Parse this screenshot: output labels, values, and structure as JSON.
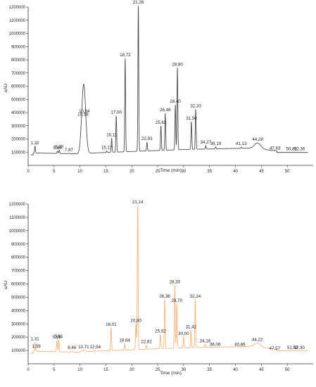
{
  "chart_data": [
    {
      "type": "line",
      "xlabel": "Time (min)",
      "ylabel": "uAU",
      "xlim": [
        0,
        55
      ],
      "ylim": [
        0,
        1200000
      ],
      "xticks": [
        0,
        5,
        10,
        15,
        20,
        25,
        30,
        35,
        40,
        45,
        50
      ],
      "yticks": [
        100000,
        200000,
        300000,
        400000,
        500000,
        600000,
        700000,
        800000,
        900000,
        1000000,
        1100000,
        1200000
      ],
      "color": "#4d4d4d",
      "peaks": [
        {
          "label": "1,32",
          "x": 1.32,
          "y": 145000
        },
        {
          "label": "5,66",
          "x": 5.66,
          "y": 108000
        },
        {
          "label": "6,00",
          "x": 6.0,
          "y": 115000
        },
        {
          "label": "7,87",
          "x": 7.87,
          "y": 92000
        },
        {
          "label": "10,58",
          "x": 10.58,
          "y": 360000
        },
        {
          "label": "10,84",
          "x": 10.84,
          "y": 385000
        },
        {
          "label": "15,17",
          "x": 15.17,
          "y": 110000
        },
        {
          "label": "16,11",
          "x": 16.11,
          "y": 205000
        },
        {
          "label": "17,00",
          "x": 17.0,
          "y": 375000
        },
        {
          "label": "18,72",
          "x": 18.72,
          "y": 810000
        },
        {
          "label": "21,26",
          "x": 21.26,
          "y": 1210000
        },
        {
          "label": "22,93",
          "x": 22.93,
          "y": 175000
        },
        {
          "label": "25,62",
          "x": 25.62,
          "y": 300000
        },
        {
          "label": "26,46",
          "x": 26.46,
          "y": 395000
        },
        {
          "label": "28,40",
          "x": 28.4,
          "y": 460000
        },
        {
          "label": "28,80",
          "x": 28.8,
          "y": 740000
        },
        {
          "label": "31,50",
          "x": 31.5,
          "y": 330000
        },
        {
          "label": "32,33",
          "x": 32.33,
          "y": 425000
        },
        {
          "label": "34,27",
          "x": 34.27,
          "y": 150000
        },
        {
          "label": "36,19",
          "x": 36.19,
          "y": 140000
        },
        {
          "label": "41,13",
          "x": 41.13,
          "y": 138000
        },
        {
          "label": "44,28",
          "x": 44.28,
          "y": 170000
        },
        {
          "label": "47,63",
          "x": 47.63,
          "y": 103000
        },
        {
          "label": "50,82",
          "x": 50.82,
          "y": 98000
        },
        {
          "label": "52,36",
          "x": 52.36,
          "y": 98000
        }
      ]
    },
    {
      "type": "line",
      "xlabel": "Time (min)",
      "ylabel": "uAU",
      "xlim": [
        0,
        55
      ],
      "ylim": [
        0,
        1200000
      ],
      "xticks": [
        0,
        5,
        10,
        15,
        20,
        25,
        30,
        35,
        40,
        45,
        50
      ],
      "yticks": [
        100000,
        200000,
        300000,
        400000,
        500000,
        600000,
        700000,
        800000,
        900000,
        1000000,
        1100000,
        1200000
      ],
      "color": "#f5b27a",
      "peaks": [
        {
          "label": "1,31",
          "x": 1.31,
          "y": 160000
        },
        {
          "label": "1,59",
          "x": 1.59,
          "y": 105000
        },
        {
          "label": "5,56",
          "x": 5.56,
          "y": 175000
        },
        {
          "label": "5,91",
          "x": 5.91,
          "y": 180000
        },
        {
          "label": "8,46",
          "x": 8.46,
          "y": 96000
        },
        {
          "label": "10,71",
          "x": 10.71,
          "y": 100000
        },
        {
          "label": "12,94",
          "x": 12.94,
          "y": 100000
        },
        {
          "label": "16,01",
          "x": 16.01,
          "y": 270000
        },
        {
          "label": "18,64",
          "x": 18.64,
          "y": 150000
        },
        {
          "label": "20,80",
          "x": 20.8,
          "y": 300000
        },
        {
          "label": "21,14",
          "x": 21.14,
          "y": 1190000
        },
        {
          "label": "22,82",
          "x": 22.82,
          "y": 140000
        },
        {
          "label": "25,52",
          "x": 25.52,
          "y": 220000
        },
        {
          "label": "26,36",
          "x": 26.36,
          "y": 480000
        },
        {
          "label": "28,30",
          "x": 28.3,
          "y": 590000
        },
        {
          "label": "28,70",
          "x": 28.7,
          "y": 450000
        },
        {
          "label": "30,00",
          "x": 30.0,
          "y": 200000
        },
        {
          "label": "31,42",
          "x": 31.42,
          "y": 250000
        },
        {
          "label": "32,24",
          "x": 32.24,
          "y": 480000
        },
        {
          "label": "34,16",
          "x": 34.16,
          "y": 145000
        },
        {
          "label": "36,06",
          "x": 36.06,
          "y": 120000
        },
        {
          "label": "40,86",
          "x": 40.86,
          "y": 120000
        },
        {
          "label": "44,22",
          "x": 44.22,
          "y": 155000
        },
        {
          "label": "47,57",
          "x": 47.57,
          "y": 90000
        },
        {
          "label": "51,02",
          "x": 51.02,
          "y": 95000
        },
        {
          "label": "52,30",
          "x": 52.3,
          "y": 95000
        }
      ]
    }
  ]
}
